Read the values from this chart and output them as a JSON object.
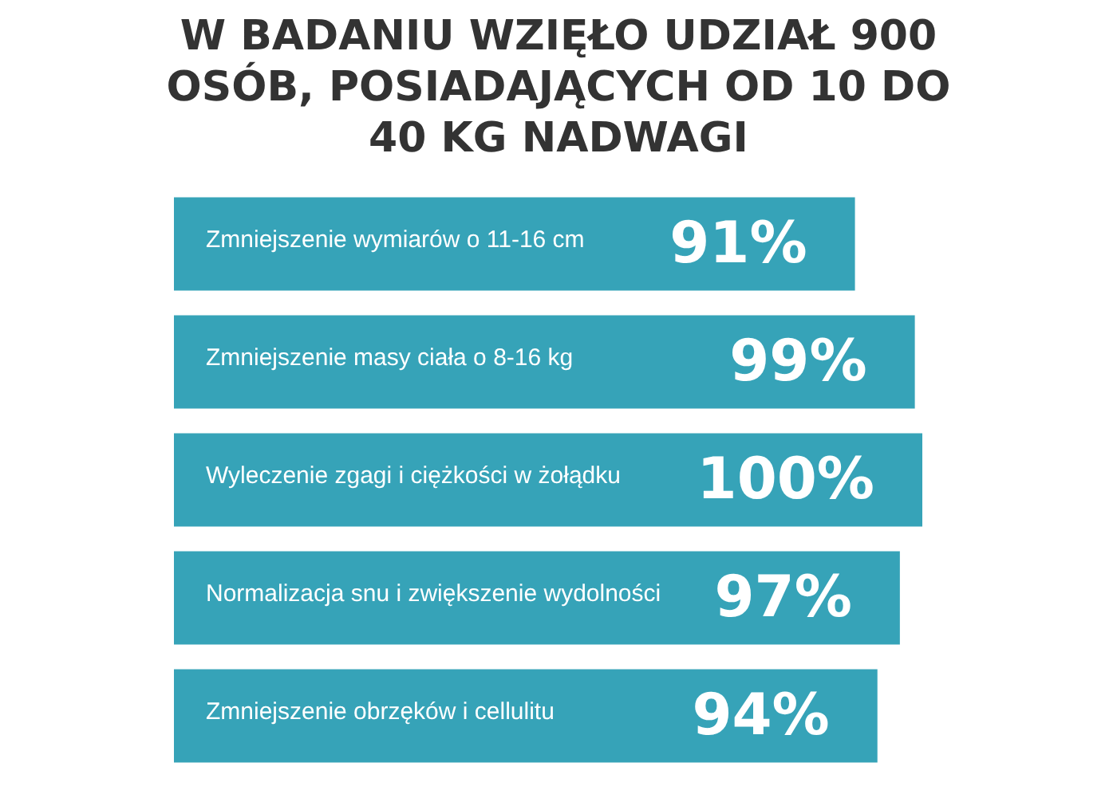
{
  "chart_data": {
    "type": "bar",
    "orientation": "horizontal",
    "title": "W BADANIU WZIĘŁO UDZIAŁ 900 OSÓB, POSIADAJĄCYCH OD 10 DO 40 KG NADWAGI",
    "categories": [
      "Zmniejszenie wymiarów o 11-16 cm",
      "Zmniejszenie masy ciała o 8-16 kg",
      "Wyleczenie zgagi i ciężkości w żołądku",
      "Normalizacja snu i zwiększenie wydolności",
      "Zmniejszenie obrzęków i cellulitu"
    ],
    "values": [
      91,
      99,
      100,
      97,
      94
    ],
    "value_labels": [
      "91%",
      "99%",
      "100%",
      "97%",
      "94%"
    ],
    "color": "#36a3b8",
    "xlim": [
      0,
      100
    ]
  }
}
